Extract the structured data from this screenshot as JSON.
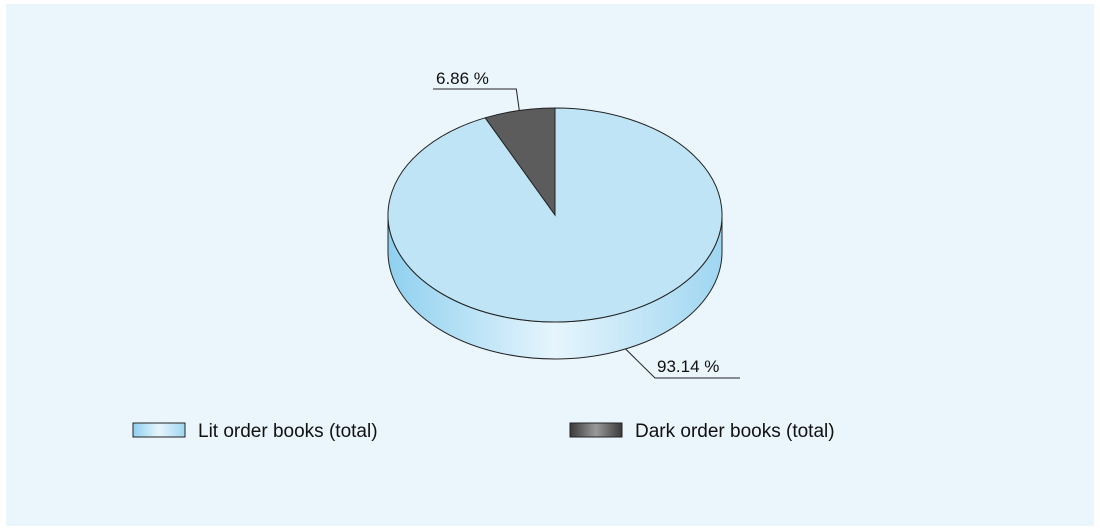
{
  "chart_data": {
    "type": "pie",
    "style": "3d",
    "title": "",
    "series": [
      {
        "name": "Lit order books (total)",
        "value": 93.14,
        "label": "93.14 %",
        "color": "#bfe4f6",
        "side_color": "#a3d9f2"
      },
      {
        "name": "Dark order books (total)",
        "value": 6.86,
        "label": "6.86 %",
        "color": "#5c5c5c",
        "side_color": "#3e3e3e"
      }
    ],
    "legend_position": "bottom"
  },
  "colors": {
    "background": "#eaf5fc",
    "outline": "#222222"
  }
}
